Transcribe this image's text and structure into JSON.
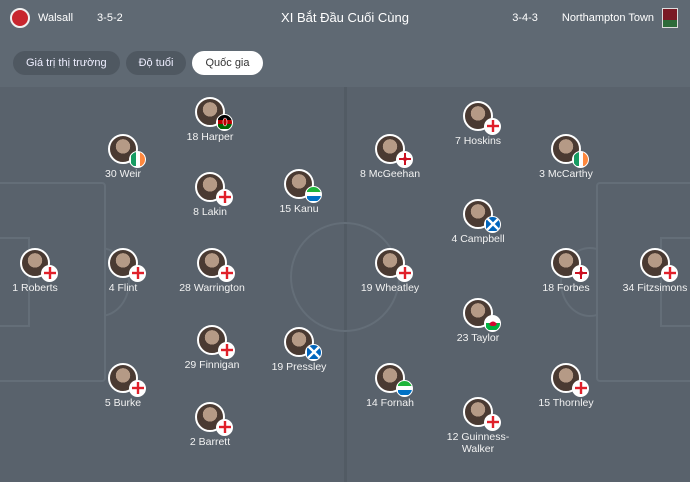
{
  "header": {
    "home_team": "Walsall",
    "home_formation": "3-5-2",
    "title": "XI Bắt Đầu Cuối Cùng",
    "away_formation": "3-4-3",
    "away_team": "Northampton Town"
  },
  "tabs": [
    {
      "label": "Giá trị thị trường",
      "active": false
    },
    {
      "label": "Độ tuổi",
      "active": false
    },
    {
      "label": "Quốc gia",
      "active": true
    }
  ],
  "players": [
    {
      "label": "18 Harper",
      "flag": "kenya"
    },
    {
      "label": "30 Weir",
      "flag": "ireland"
    },
    {
      "label": "8 Lakin",
      "flag": "england"
    },
    {
      "label": "15 Kanu",
      "flag": "sierra-leone"
    },
    {
      "label": "1 Roberts",
      "flag": "england"
    },
    {
      "label": "4 Flint",
      "flag": "england"
    },
    {
      "label": "28 Warrington",
      "flag": "england"
    },
    {
      "label": "29 Finnigan",
      "flag": "england"
    },
    {
      "label": "19 Pressley",
      "flag": "scotland"
    },
    {
      "label": "5 Burke",
      "flag": "england"
    },
    {
      "label": "2 Barrett",
      "flag": "england"
    },
    {
      "label": "7 Hoskins",
      "flag": "england"
    },
    {
      "label": "3 McCarthy",
      "flag": "ireland"
    },
    {
      "label": "8 McGeehan",
      "flag": "northern-ireland"
    },
    {
      "label": "4 Campbell",
      "flag": "scotland"
    },
    {
      "label": "19 Wheatley",
      "flag": "england"
    },
    {
      "label": "18 Forbes",
      "flag": "northern-ireland"
    },
    {
      "label": "34 Fitzsimons",
      "flag": "england"
    },
    {
      "label": "23 Taylor",
      "flag": "wales"
    },
    {
      "label": "14 Fornah",
      "flag": "sierra-leone"
    },
    {
      "label": "15 Thornley",
      "flag": "england"
    },
    {
      "label": "12 Guinness-Walker",
      "flag": "england"
    }
  ]
}
